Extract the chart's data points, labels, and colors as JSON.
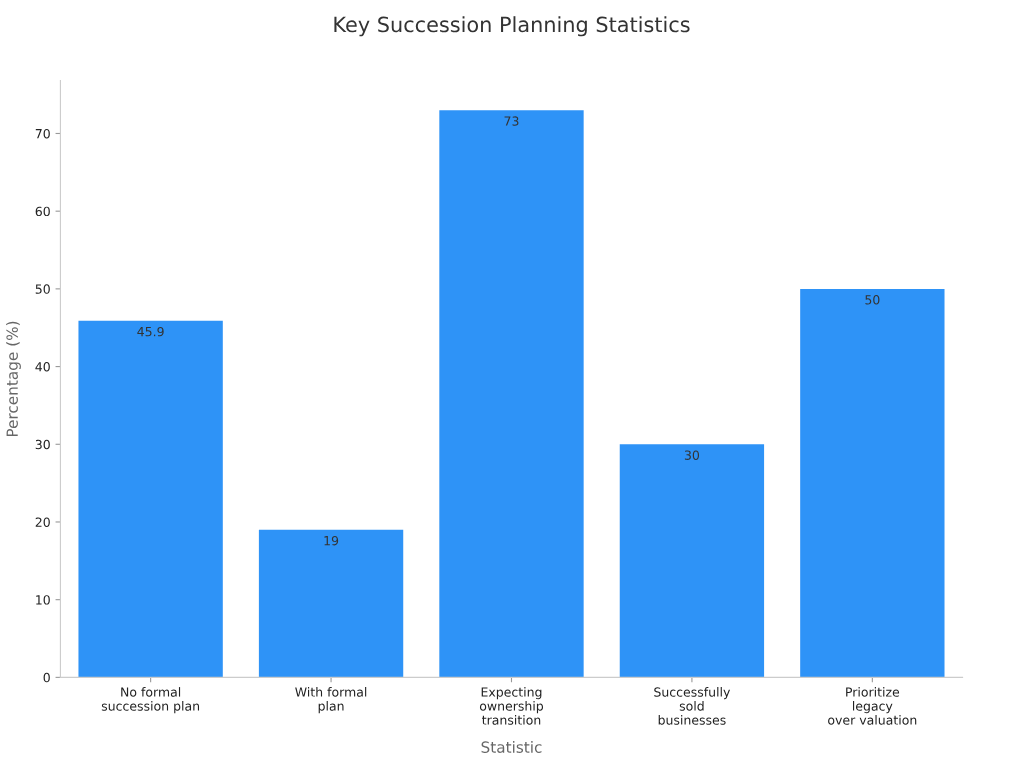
{
  "chart_data": {
    "type": "bar",
    "title": "Key Succession Planning Statistics",
    "xlabel": "Statistic",
    "ylabel": "Percentage (%)",
    "categories": [
      "No formal\nsuccession plan",
      "With formal\nplan",
      "Expecting\nownership\ntransition",
      "Successfully\nsold\nbusinesses",
      "Prioritize\nlegacy\nover valuation"
    ],
    "values": [
      45.9,
      19,
      73,
      30,
      50
    ],
    "color": "#2e93f7",
    "ylim": [
      0,
      76.8
    ],
    "yticks": [
      0,
      10,
      20,
      30,
      40,
      50,
      60,
      70
    ],
    "grid": false,
    "data_labels": true
  }
}
